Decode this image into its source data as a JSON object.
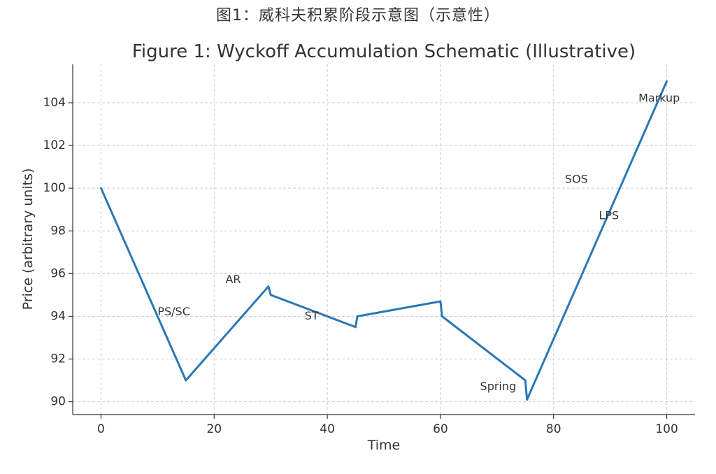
{
  "figure": {
    "suptitle": "图1：威科夫积累阶段示意图（示意性）"
  },
  "chart_data": {
    "type": "line",
    "title": "Figure 1: Wyckoff Accumulation Schematic (Illustrative)",
    "xlabel": "Time",
    "ylabel": "Price (arbitrary units)",
    "xlim": [
      -5,
      105
    ],
    "ylim": [
      89.4,
      105.8
    ],
    "xticks": [
      0,
      20,
      40,
      60,
      80,
      100
    ],
    "yticks": [
      90,
      92,
      94,
      96,
      98,
      100,
      102,
      104
    ],
    "grid": true,
    "line_color": "#2a78b4",
    "series": [
      {
        "x": [
          0,
          15,
          29.6,
          30,
          45,
          45.3,
          60,
          60.3,
          75,
          75.3,
          100
        ],
        "y": [
          100,
          91,
          95.4,
          95.0,
          93.5,
          94.0,
          94.7,
          94.0,
          91.0,
          90.1,
          105
        ]
      }
    ],
    "annotations": [
      {
        "text": "PS/SC",
        "x": 10,
        "y": 94.2
      },
      {
        "text": "AR",
        "x": 22,
        "y": 95.7
      },
      {
        "text": "ST",
        "x": 36,
        "y": 94.0
      },
      {
        "text": "Spring",
        "x": 67,
        "y": 90.7
      },
      {
        "text": "SOS",
        "x": 82,
        "y": 100.4
      },
      {
        "text": "LPS",
        "x": 88,
        "y": 98.7
      },
      {
        "text": "Markup",
        "x": 95,
        "y": 104.2
      }
    ]
  }
}
